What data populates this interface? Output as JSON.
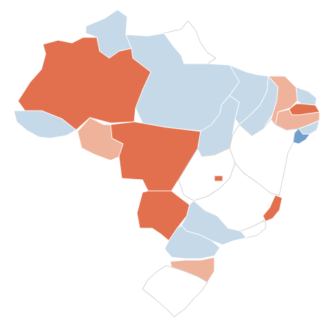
{
  "map": {
    "palette": {
      "dark_orange": "#e2704e",
      "light_orange": "#efb39c",
      "light_blue": "#c5d9e8",
      "medium_blue": "#6f9fcb",
      "white": "#ffffff",
      "border": "#c8c8c8"
    },
    "regions": [
      {
        "id": "AM",
        "category": "dark_orange"
      },
      {
        "id": "RR",
        "category": "light_blue"
      },
      {
        "id": "AP",
        "category": "white"
      },
      {
        "id": "PA",
        "category": "light_blue"
      },
      {
        "id": "AC",
        "category": "light_blue"
      },
      {
        "id": "RO",
        "category": "light_orange"
      },
      {
        "id": "MT",
        "category": "dark_orange"
      },
      {
        "id": "TO",
        "category": "light_blue"
      },
      {
        "id": "MA",
        "category": "light_blue"
      },
      {
        "id": "PI",
        "category": "light_blue"
      },
      {
        "id": "CE",
        "category": "light_orange"
      },
      {
        "id": "RN",
        "category": "light_blue"
      },
      {
        "id": "PB",
        "category": "dark_orange"
      },
      {
        "id": "PE",
        "category": "light_orange"
      },
      {
        "id": "AL",
        "category": "light_blue"
      },
      {
        "id": "SE",
        "category": "medium_blue"
      },
      {
        "id": "BA",
        "category": "white"
      },
      {
        "id": "GO",
        "category": "white"
      },
      {
        "id": "DF",
        "category": "dark_orange"
      },
      {
        "id": "MG",
        "category": "white"
      },
      {
        "id": "ES",
        "category": "dark_orange"
      },
      {
        "id": "RJ",
        "category": "white"
      },
      {
        "id": "MS",
        "category": "dark_orange"
      },
      {
        "id": "SP",
        "category": "light_blue"
      },
      {
        "id": "PR",
        "category": "light_blue"
      },
      {
        "id": "SC",
        "category": "light_orange"
      },
      {
        "id": "RS",
        "category": "white"
      }
    ]
  }
}
